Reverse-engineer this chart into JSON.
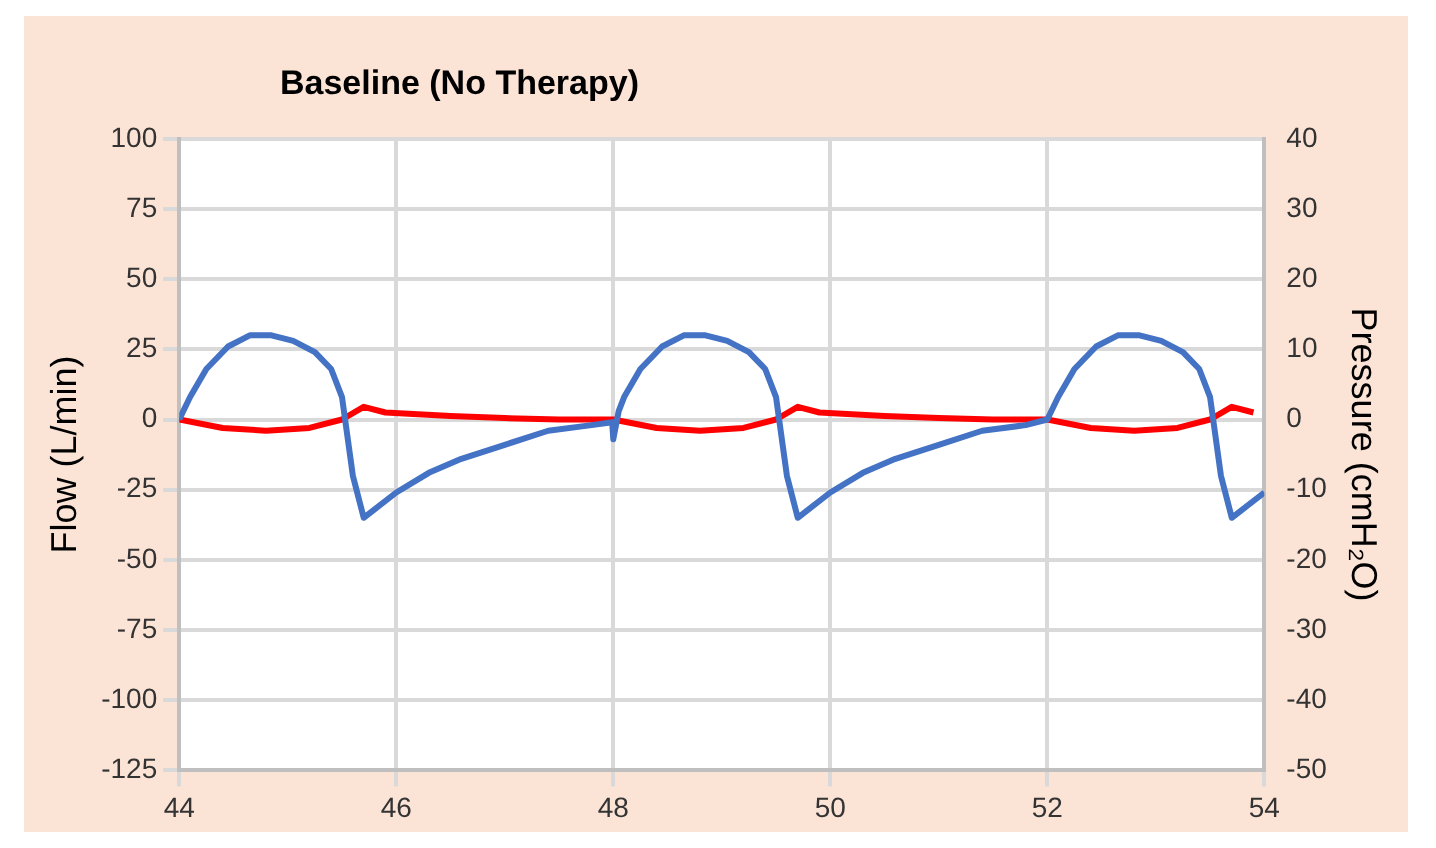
{
  "chart_data": {
    "type": "line",
    "title": "Baseline (No Therapy)",
    "ylabel": "Flow (L/min)",
    "y2label": "Pressure (cmH₂O)",
    "xlim": [
      44,
      54
    ],
    "xticks": [
      44,
      46,
      48,
      50,
      52,
      54
    ],
    "ylim": [
      -125,
      100
    ],
    "yticks": [
      -125,
      -100,
      -75,
      -50,
      -25,
      0,
      25,
      50,
      75,
      100
    ],
    "y2lim": [
      -50,
      40
    ],
    "y2ticks": [
      -50,
      -40,
      -30,
      -20,
      -10,
      0,
      10,
      20,
      30,
      40
    ],
    "grid": true,
    "legend": false,
    "marker": "none",
    "series": [
      {
        "color": "#4472c4",
        "x": [
          44,
          44.1,
          44.25,
          44.45,
          44.65,
          44.85,
          45.05,
          45.25,
          45.4,
          45.5,
          45.6,
          45.7,
          45.8,
          46,
          46.3,
          46.6,
          47,
          47.4,
          47.8,
          47.99,
          48,
          48.05,
          48.1,
          48.25,
          48.45,
          48.65,
          48.85,
          49.05,
          49.25,
          49.4,
          49.5,
          49.6,
          49.7,
          49.8,
          50,
          50.3,
          50.6,
          51,
          51.4,
          51.8,
          52,
          52.1,
          52.25,
          52.45,
          52.65,
          52.85,
          53.05,
          53.25,
          53.4,
          53.5,
          53.6,
          53.7,
          53.8,
          54
        ],
        "values": [
          0,
          8,
          18,
          26,
          30,
          30,
          28,
          24,
          18,
          8,
          -20,
          -35,
          -32,
          -26,
          -19,
          -14,
          -9,
          -4,
          -2,
          -1,
          -7,
          3,
          8,
          18,
          26,
          30,
          30,
          28,
          24,
          18,
          8,
          -20,
          -35,
          -32,
          -26,
          -19,
          -14,
          -9,
          -4,
          -2,
          0,
          8,
          18,
          26,
          30,
          30,
          28,
          24,
          18,
          8,
          -20,
          -35,
          -32,
          -26
        ]
      },
      {
        "color": "#ff0000",
        "axis": "y2",
        "x": [
          44,
          44.4,
          44.8,
          45.2,
          45.5,
          45.7,
          45.9,
          46.5,
          47,
          47.5,
          48,
          48.4,
          48.8,
          49.2,
          49.5,
          49.7,
          49.9,
          50.5,
          51,
          51.5,
          52,
          52.4,
          52.8,
          53.2,
          53.5,
          53.7,
          53.9
        ],
        "values": [
          0,
          -1.2,
          -1.6,
          -1.2,
          0,
          1.8,
          1,
          0.5,
          0.2,
          0,
          0,
          -1.2,
          -1.6,
          -1.2,
          0,
          1.8,
          1,
          0.5,
          0.2,
          0,
          0,
          -1.2,
          -1.6,
          -1.2,
          0,
          1.8,
          1
        ]
      }
    ]
  }
}
